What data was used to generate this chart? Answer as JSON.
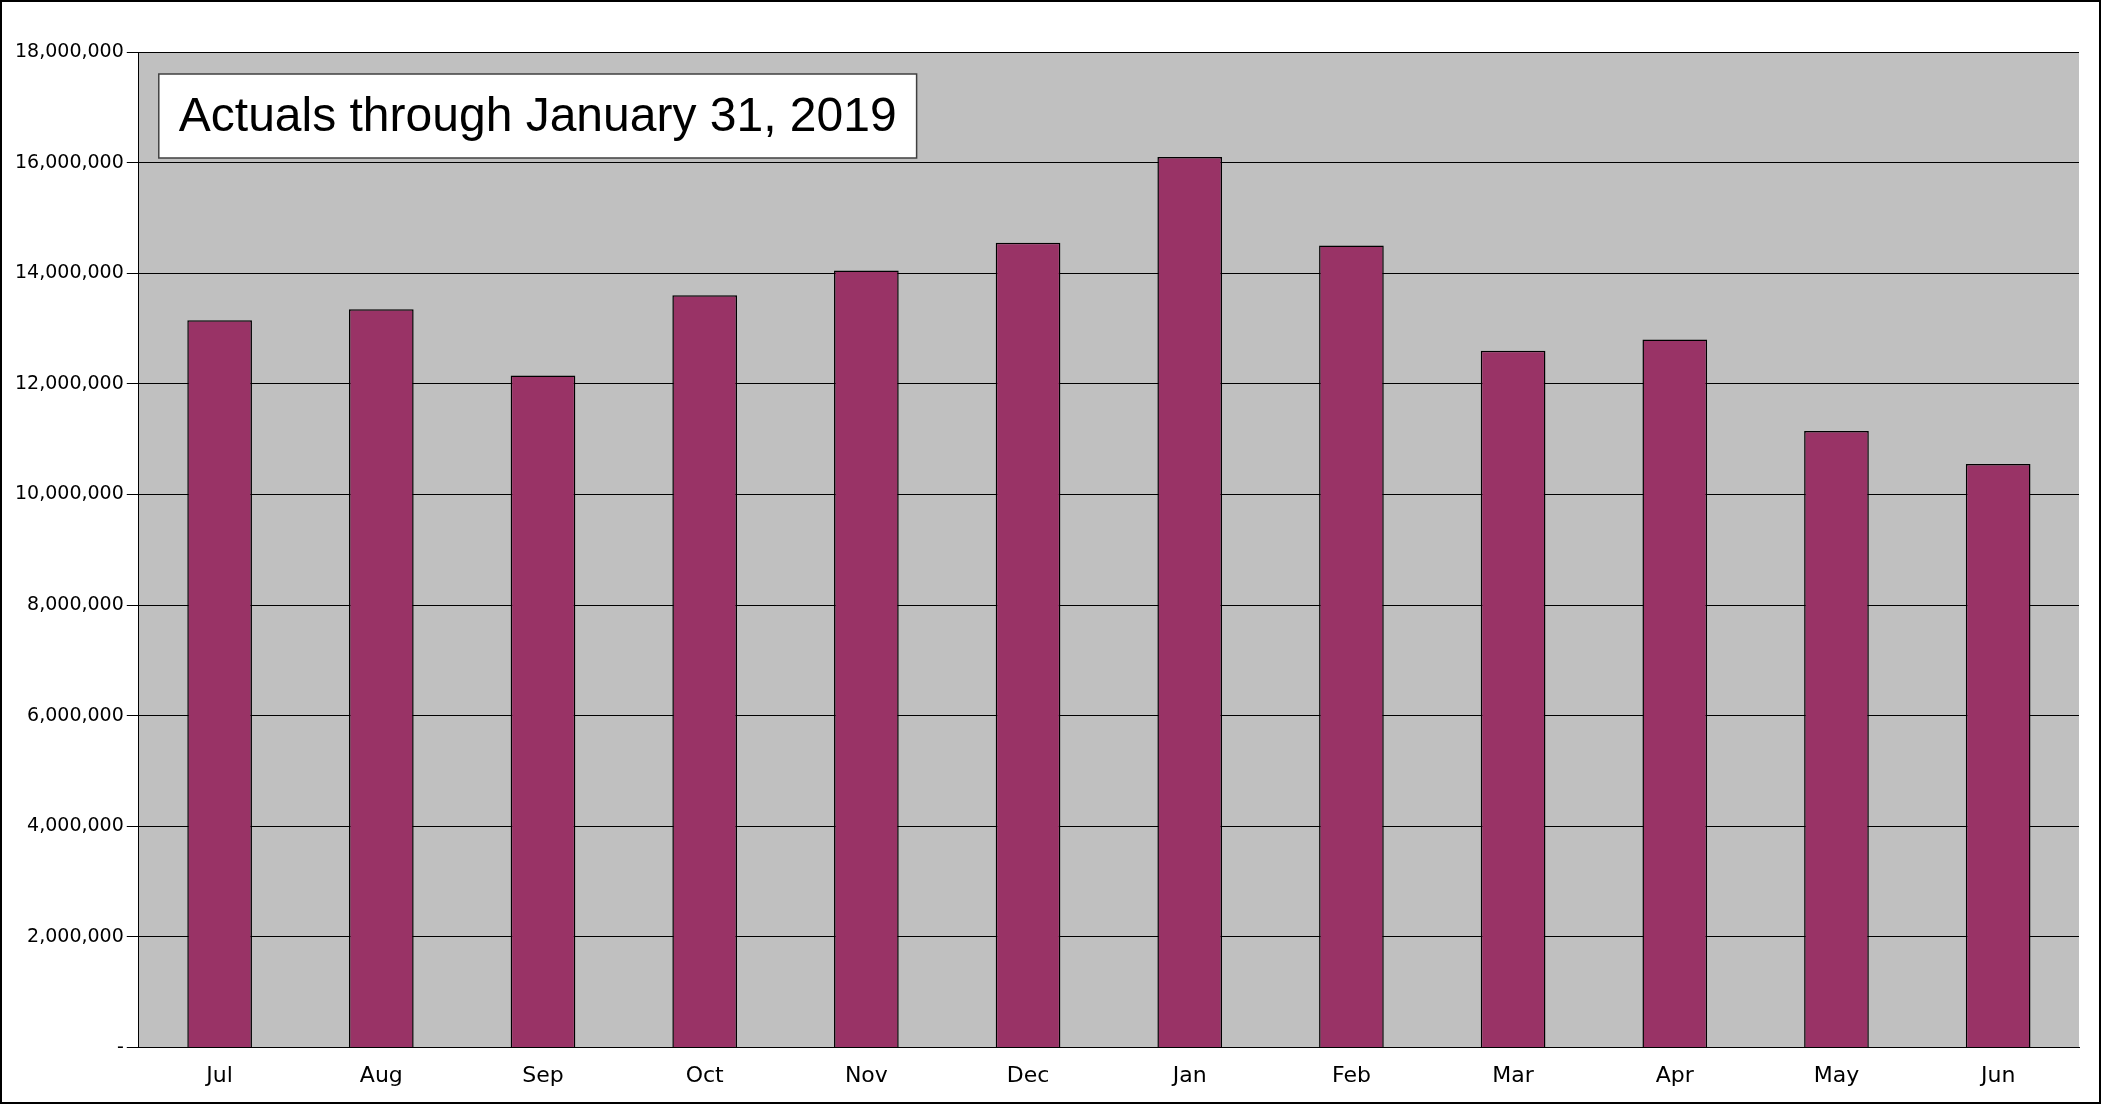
{
  "chart_data": {
    "type": "bar",
    "categories": [
      "Jul",
      "Aug",
      "Sep",
      "Oct",
      "Nov",
      "Dec",
      "Jan",
      "Feb",
      "Mar",
      "Apr",
      "May",
      "Jun"
    ],
    "values": [
      13150000,
      13350000,
      12150000,
      13600000,
      14050000,
      14550000,
      16100000,
      14500000,
      12600000,
      12800000,
      11150000,
      10550000
    ],
    "color": "#993366",
    "ylim": [
      0,
      18000000
    ],
    "yticks": [
      {
        "value": 0,
        "label": "-"
      },
      {
        "value": 2000000,
        "label": "2,000,000"
      },
      {
        "value": 4000000,
        "label": "4,000,000"
      },
      {
        "value": 6000000,
        "label": "6,000,000"
      },
      {
        "value": 8000000,
        "label": "8,000,000"
      },
      {
        "value": 10000000,
        "label": "10,000,000"
      },
      {
        "value": 12000000,
        "label": "12,000,000"
      },
      {
        "value": 14000000,
        "label": "14,000,000"
      },
      {
        "value": 16000000,
        "label": "16,000,000"
      },
      {
        "value": 18000000,
        "label": "18,000,000"
      }
    ],
    "grid": "y",
    "legend": false,
    "annotations": [
      "Actuals through January 31, 2019"
    ]
  }
}
